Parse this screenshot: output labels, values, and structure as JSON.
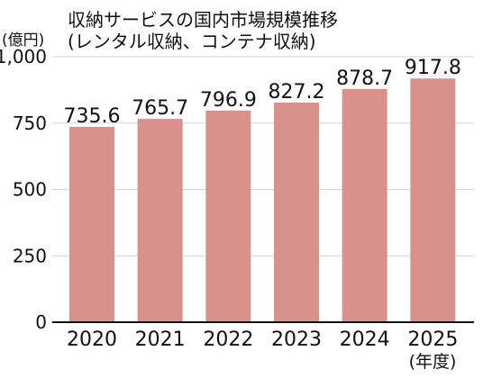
{
  "chart_data": {
    "type": "bar",
    "title_lines": [
      "収納サービスの国内市場規模推移",
      "(レンタル収納、コンテナ収納)"
    ],
    "y_unit": "(億円)",
    "x_unit": "(年度)",
    "categories": [
      "2020",
      "2021",
      "2022",
      "2023",
      "2024",
      "2025"
    ],
    "values": [
      735.6,
      765.7,
      796.9,
      827.2,
      878.7,
      917.8
    ],
    "value_labels": [
      "735.6",
      "765.7",
      "796.9",
      "827.2",
      "878.7",
      "917.8"
    ],
    "ylim": [
      0,
      1000
    ],
    "yticks": [
      0,
      250,
      500,
      750,
      1000
    ],
    "ytick_labels": [
      "0",
      "250",
      "500",
      "750",
      "1,000"
    ],
    "grid": true,
    "bar_color": "#d8918b",
    "legend": "none"
  }
}
